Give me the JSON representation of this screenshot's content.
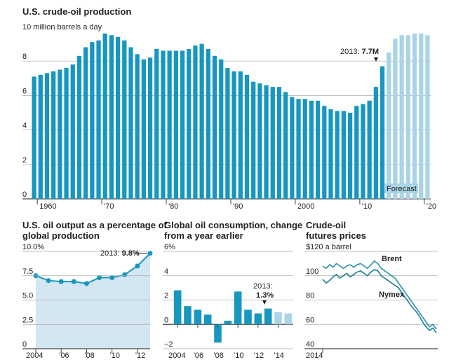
{
  "colors": {
    "actual": "#1797bf",
    "forecast": "#a9d4e6",
    "line": "#1797bf",
    "area": "#d3e6f1",
    "grid": "#999999",
    "brent": "#2a8fa6",
    "nymex": "#1a7d95"
  },
  "chart_data": [
    {
      "type": "bar",
      "title": "U.S. crude-oil production",
      "ylabel": "10 million barrels a day",
      "ylim": [
        0,
        10
      ],
      "yticks": [
        "0",
        "2",
        "4",
        "6",
        "8"
      ],
      "xticks": [
        "1960",
        "'70",
        "'80",
        "'90",
        "2000",
        "'10",
        "'20"
      ],
      "x": [
        1959,
        1960,
        1961,
        1962,
        1963,
        1964,
        1965,
        1966,
        1967,
        1968,
        1969,
        1970,
        1971,
        1972,
        1973,
        1974,
        1975,
        1976,
        1977,
        1978,
        1979,
        1980,
        1981,
        1982,
        1983,
        1984,
        1985,
        1986,
        1987,
        1988,
        1989,
        1990,
        1991,
        1992,
        1993,
        1994,
        1995,
        1996,
        1997,
        1998,
        1999,
        2000,
        2001,
        2002,
        2003,
        2004,
        2005,
        2006,
        2007,
        2008,
        2009,
        2010,
        2011,
        2012,
        2013,
        2014,
        2015,
        2016,
        2017,
        2018,
        2019,
        2020
      ],
      "values": [
        7.1,
        7.2,
        7.3,
        7.4,
        7.5,
        7.6,
        7.8,
        8.3,
        8.8,
        9.1,
        9.2,
        9.6,
        9.5,
        9.4,
        9.2,
        8.8,
        8.4,
        8.1,
        8.2,
        8.7,
        8.6,
        8.6,
        8.6,
        8.6,
        8.7,
        8.9,
        9.0,
        8.7,
        8.3,
        8.1,
        7.6,
        7.4,
        7.4,
        7.2,
        6.8,
        6.7,
        6.6,
        6.5,
        6.5,
        6.2,
        5.9,
        5.8,
        5.8,
        5.7,
        5.7,
        5.4,
        5.2,
        5.1,
        5.1,
        5.0,
        5.4,
        5.5,
        5.7,
        6.5,
        7.7,
        8.5,
        9.3,
        9.5,
        9.5,
        9.6,
        9.6,
        9.5
      ],
      "forecast_from": 2014,
      "annotation": {
        "prefix": "2013: ",
        "value": "7.7M"
      },
      "forecast_label": "Forecast"
    },
    {
      "type": "area",
      "title": [
        "U.S. oil output as a percentage of",
        "global production"
      ],
      "ylim": [
        0,
        10
      ],
      "yticks": [
        "0",
        "2.5",
        "5.0",
        "7.5",
        "10.0%"
      ],
      "xticks": [
        "2004",
        "'06",
        "'08",
        "'10",
        "'12"
      ],
      "x": [
        2004,
        2005,
        2006,
        2007,
        2008,
        2009,
        2010,
        2011,
        2012,
        2013
      ],
      "values": [
        7.5,
        7.0,
        6.9,
        6.9,
        6.7,
        7.3,
        7.3,
        7.6,
        8.5,
        9.8
      ],
      "annotation": {
        "prefix": "2013: ",
        "value": "9.8%"
      }
    },
    {
      "type": "bar",
      "title": [
        "Global oil consumption, change",
        "from a year earlier"
      ],
      "ylim": [
        -2,
        6
      ],
      "yticks": [
        "6%",
        "4",
        "2",
        "0",
        "−2"
      ],
      "xticks": [
        "2004",
        "'06",
        "'08",
        "'10",
        "'12",
        "'14"
      ],
      "x": [
        2004,
        2005,
        2006,
        2007,
        2008,
        2009,
        2010,
        2011,
        2012,
        2013,
        2014,
        2015
      ],
      "values": [
        2.8,
        1.5,
        1.2,
        0.8,
        -1.5,
        0.3,
        2.7,
        1.2,
        0.9,
        1.3,
        1.0,
        0.9
      ],
      "forecast_from": 2014,
      "annotation": {
        "year": "2013:",
        "value": "1.3%"
      }
    },
    {
      "type": "line",
      "title": [
        "Crude-oil",
        "futures prices"
      ],
      "ylim": [
        40,
        120
      ],
      "yticks": [
        "$120 a barrel",
        "100",
        "80",
        "60",
        "40"
      ],
      "xticks": [
        "2014"
      ],
      "series": [
        {
          "name": "Brent",
          "values": [
            108,
            106,
            109,
            107,
            110,
            108,
            106,
            108,
            109,
            107,
            109,
            110,
            108,
            106,
            109,
            112,
            110,
            106,
            104,
            102,
            100,
            98,
            94,
            90,
            86,
            82,
            78,
            74,
            70,
            66,
            62,
            58,
            60,
            56
          ]
        },
        {
          "name": "Nymex",
          "values": [
            97,
            94,
            96,
            99,
            101,
            98,
            100,
            102,
            99,
            101,
            103,
            104,
            102,
            100,
            103,
            105,
            104,
            100,
            98,
            96,
            94,
            92,
            90,
            86,
            82,
            78,
            74,
            71,
            67,
            62,
            58,
            55,
            57,
            53
          ]
        }
      ]
    }
  ]
}
